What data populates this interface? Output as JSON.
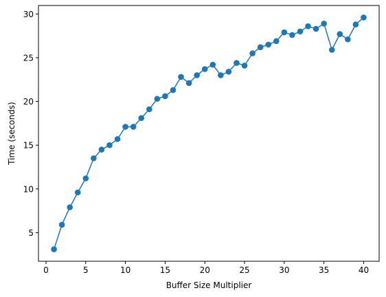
{
  "chart_data": {
    "type": "line",
    "xlabel": "Buffer Size Multiplier",
    "ylabel": "Time (seconds)",
    "xlim": [
      -0.95,
      41.95
    ],
    "ylim": [
      1.73,
      30.97
    ],
    "xticks": [
      0,
      5,
      10,
      15,
      20,
      25,
      30,
      35,
      40
    ],
    "yticks": [
      5,
      10,
      15,
      20,
      25,
      30
    ],
    "grid": false,
    "series": [
      {
        "color": "#1f77b4",
        "marker": "circle",
        "x": [
          1,
          2,
          3,
          4,
          5,
          6,
          7,
          8,
          9,
          10,
          11,
          12,
          13,
          14,
          15,
          16,
          17,
          18,
          19,
          20,
          21,
          22,
          23,
          24,
          25,
          26,
          27,
          28,
          29,
          30,
          31,
          32,
          33,
          34,
          35,
          36,
          37,
          38,
          39,
          40
        ],
        "y": [
          3.1,
          5.9,
          7.9,
          9.6,
          11.2,
          13.5,
          14.5,
          15.0,
          15.7,
          17.1,
          17.1,
          18.1,
          19.1,
          20.3,
          20.6,
          21.3,
          22.8,
          22.1,
          23.0,
          23.7,
          24.2,
          23.0,
          23.4,
          24.4,
          24.1,
          25.5,
          26.2,
          26.5,
          26.9,
          27.9,
          27.6,
          28.0,
          28.6,
          28.3,
          28.9,
          25.9,
          27.7,
          27.1,
          28.8,
          29.6
        ]
      }
    ]
  }
}
